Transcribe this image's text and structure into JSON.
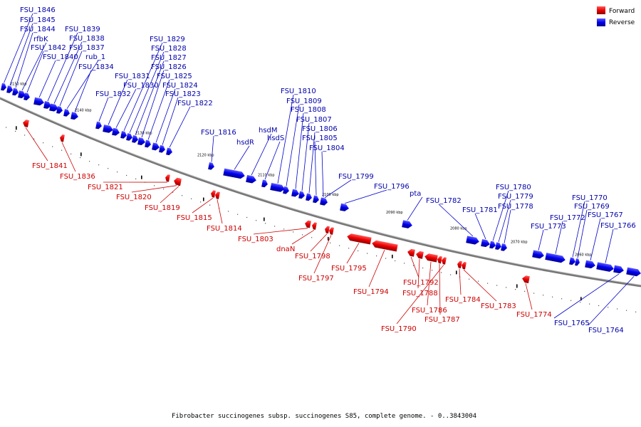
{
  "caption": "Fibrobacter succinogenes subsp. succinogenes S85, complete genome. - 0..3843004",
  "legend": {
    "forward": {
      "label": "Forward",
      "color": "#ee0000"
    },
    "reverse": {
      "label": "Reverse",
      "color": "#0000ee"
    }
  },
  "ticks": [
    "2150 kbp",
    "2140 kbp",
    "2130 kbp",
    "2120 kbp",
    "2110 kbp",
    "2100 kbp",
    "2090 kbp",
    "2080 kbp",
    "2070 kbp",
    "2060 kbp"
  ],
  "reverse_genes": [
    "FSU_1846",
    "FSU_1845",
    "FSU_1844",
    "rfbK",
    "FSU_1842",
    "FSU_1840",
    "FSU_1839",
    "FSU_1838",
    "FSU_1837",
    "rub_1",
    "FSU_1834",
    "FSU_1832",
    "FSU_1831",
    "FSU_1830",
    "FSU_1829",
    "FSU_1828",
    "FSU_1827",
    "FSU_1826",
    "FSU_1825",
    "FSU_1824",
    "FSU_1823",
    "FSU_1822",
    "FSU_1816",
    "hsdR",
    "hsdM",
    "hsdS",
    "FSU_1810",
    "FSU_1809",
    "FSU_1808",
    "FSU_1807",
    "FSU_1806",
    "FSU_1805",
    "FSU_1804",
    "FSU_1799",
    "FSU_1796",
    "pta",
    "FSU_1782",
    "FSU_1781",
    "FSU_1780",
    "FSU_1779",
    "FSU_1778",
    "FSU_1773",
    "FSU_1772",
    "FSU_1770",
    "FSU_1769",
    "FSU_1767",
    "FSU_1766",
    "FSU_1765",
    "FSU_1764"
  ],
  "forward_genes": [
    "FSU_1841",
    "FSU_1836",
    "FSU_1821",
    "FSU_1820",
    "FSU_1819",
    "FSU_1815",
    "FSU_1814",
    "FSU_1803",
    "dnaN",
    "FSU_1798",
    "FSU_1797",
    "FSU_1795",
    "FSU_1794",
    "FSU_1792",
    "FSU_1788",
    "FSU_1786",
    "FSU_1787",
    "FSU_1790",
    "FSU_1784",
    "FSU_1783",
    "FSU_1774"
  ]
}
